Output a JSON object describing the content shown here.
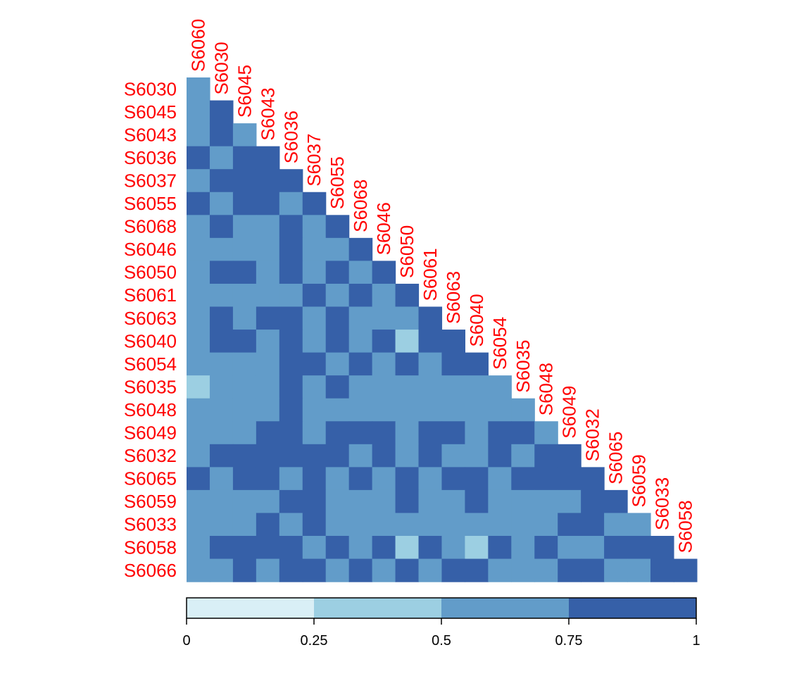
{
  "chart_data": {
    "type": "heatmap",
    "shape": "lower-triangle",
    "column_labels": [
      "S6060",
      "S6030",
      "S6045",
      "S6043",
      "S6036",
      "S6037",
      "S6055",
      "S6068",
      "S6046",
      "S6050",
      "S6061",
      "S6063",
      "S6040",
      "S6054",
      "S6035",
      "S6048",
      "S6049",
      "S6032",
      "S6065",
      "S6059",
      "S6033",
      "S6058"
    ],
    "row_labels": [
      "S6030",
      "S6045",
      "S6043",
      "S6036",
      "S6037",
      "S6055",
      "S6068",
      "S6046",
      "S6050",
      "S6061",
      "S6063",
      "S6040",
      "S6054",
      "S6035",
      "S6048",
      "S6049",
      "S6032",
      "S6065",
      "S6059",
      "S6033",
      "S6058",
      "S6066"
    ],
    "value_bins": [
      "0-0.25",
      "0.25-0.5",
      "0.5-0.75",
      "0.75-1"
    ],
    "cells": [
      [
        2
      ],
      [
        2,
        3
      ],
      [
        2,
        3,
        2
      ],
      [
        3,
        2,
        3,
        3
      ],
      [
        2,
        3,
        3,
        3,
        3
      ],
      [
        3,
        2,
        3,
        3,
        2,
        3
      ],
      [
        2,
        3,
        2,
        2,
        3,
        2,
        3
      ],
      [
        2,
        2,
        2,
        2,
        3,
        2,
        2,
        3
      ],
      [
        2,
        3,
        3,
        2,
        3,
        2,
        3,
        2,
        3
      ],
      [
        2,
        2,
        2,
        2,
        2,
        3,
        2,
        3,
        2,
        3
      ],
      [
        2,
        3,
        2,
        3,
        3,
        2,
        3,
        2,
        2,
        2,
        3
      ],
      [
        2,
        3,
        3,
        2,
        3,
        2,
        3,
        2,
        3,
        1,
        3,
        3
      ],
      [
        2,
        2,
        2,
        2,
        3,
        3,
        2,
        3,
        2,
        3,
        2,
        3,
        3
      ],
      [
        1,
        2,
        2,
        2,
        3,
        2,
        3,
        2,
        2,
        2,
        2,
        2,
        2,
        2
      ],
      [
        2,
        2,
        2,
        2,
        3,
        2,
        2,
        2,
        2,
        2,
        2,
        2,
        2,
        2,
        2
      ],
      [
        2,
        2,
        2,
        3,
        3,
        2,
        3,
        3,
        3,
        2,
        3,
        3,
        2,
        3,
        3,
        2
      ],
      [
        2,
        3,
        3,
        3,
        3,
        3,
        3,
        2,
        3,
        2,
        3,
        2,
        2,
        3,
        2,
        3,
        3
      ],
      [
        3,
        2,
        3,
        3,
        2,
        3,
        2,
        3,
        2,
        3,
        2,
        3,
        3,
        2,
        3,
        3,
        3,
        3
      ],
      [
        2,
        2,
        2,
        2,
        3,
        3,
        2,
        2,
        2,
        3,
        2,
        2,
        3,
        2,
        2,
        2,
        2,
        3,
        3
      ],
      [
        2,
        2,
        2,
        3,
        2,
        3,
        2,
        2,
        2,
        2,
        2,
        2,
        2,
        2,
        2,
        2,
        3,
        3,
        2,
        2
      ],
      [
        2,
        3,
        3,
        3,
        3,
        2,
        3,
        2,
        3,
        1,
        3,
        2,
        1,
        3,
        2,
        3,
        2,
        2,
        3,
        3,
        3
      ],
      [
        2,
        2,
        3,
        2,
        3,
        3,
        2,
        3,
        2,
        3,
        2,
        3,
        3,
        2,
        2,
        2,
        3,
        3,
        2,
        2,
        3,
        3
      ]
    ],
    "bin_colors": [
      "#d9eff6",
      "#9ccfe2",
      "#629cc9",
      "#3660a8"
    ],
    "label_color": "#ff0000",
    "colorbar": {
      "ticks": [
        "0",
        "0.25",
        "0.5",
        "0.75",
        "1"
      ],
      "range": [
        0,
        1
      ]
    }
  }
}
